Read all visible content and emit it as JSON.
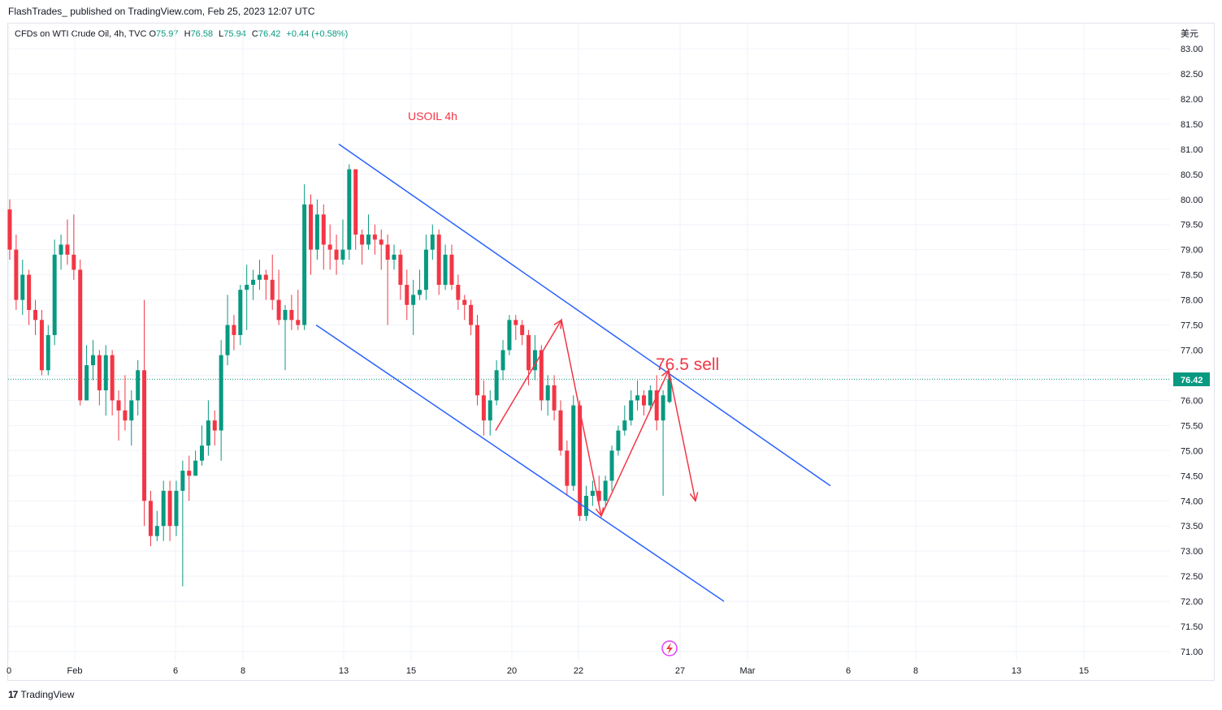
{
  "header": {
    "publisher_line": "FlashTrades_ published on TradingView.com, Feb 25, 2023 12:07 UTC"
  },
  "legend": {
    "symbol": "CFDs on WTI Crude Oil, 4h, TVC",
    "o_label": "O",
    "o_value": "75.97",
    "h_label": "H",
    "h_value": "76.58",
    "l_label": "L",
    "l_value": "75.94",
    "c_label": "C",
    "c_value": "76.42",
    "change": "+0.44 (+0.58%)"
  },
  "currency_label": "美元",
  "last_price_label": "76.42",
  "footer": {
    "logo": "17",
    "brand": "TradingView"
  },
  "colors": {
    "up": "#089981",
    "down": "#f23645",
    "channel": "#2962ff",
    "annotation": "#f23645"
  },
  "chart_data": {
    "type": "candlestick",
    "title": "USOIL 4h",
    "annotation": "76.5 sell",
    "ylim": [
      70.8,
      83.3
    ],
    "y_ticks": [
      83.0,
      82.5,
      82.0,
      81.5,
      81.0,
      80.5,
      80.0,
      79.5,
      79.0,
      78.5,
      78.0,
      77.5,
      77.0,
      76.5,
      76.0,
      75.5,
      75.0,
      74.5,
      74.0,
      73.5,
      73.0,
      72.5,
      72.0,
      71.5,
      71.0
    ],
    "x_ticks": [
      "0",
      "Feb",
      "6",
      "8",
      "13",
      "15",
      "20",
      "22",
      "27",
      "Mar",
      "6",
      "8",
      "13",
      "15"
    ],
    "last_price": 76.42,
    "channel_upper": {
      "from": 81.1,
      "to": 74.3
    },
    "channel_lower": {
      "from": 77.5,
      "to": 72.0
    },
    "path_annotation": [
      75.4,
      77.6,
      73.7,
      76.6,
      74.0
    ],
    "candles": [
      [
        79.8,
        79.0,
        80.0,
        78.8
      ],
      [
        79.0,
        78.0,
        79.3,
        77.8
      ],
      [
        78.0,
        78.5,
        78.8,
        77.7
      ],
      [
        78.5,
        77.8,
        78.6,
        77.5
      ],
      [
        77.8,
        77.6,
        78.0,
        77.3
      ],
      [
        77.6,
        76.6,
        77.8,
        76.5
      ],
      [
        76.6,
        77.3,
        77.5,
        76.5
      ],
      [
        77.3,
        78.9,
        79.2,
        77.1
      ],
      [
        78.9,
        79.1,
        79.3,
        78.6
      ],
      [
        79.1,
        78.9,
        79.6,
        78.7
      ],
      [
        78.9,
        78.6,
        79.7,
        78.4
      ],
      [
        78.6,
        76.0,
        78.8,
        75.9
      ],
      [
        76.0,
        76.7,
        77.1,
        76.0
      ],
      [
        76.7,
        76.9,
        77.2,
        76.4
      ],
      [
        76.9,
        76.2,
        77.0,
        75.9
      ],
      [
        76.2,
        76.9,
        77.1,
        75.7
      ],
      [
        76.9,
        76.0,
        77.0,
        75.7
      ],
      [
        76.0,
        75.8,
        76.2,
        75.2
      ],
      [
        75.8,
        75.6,
        76.5,
        75.4
      ],
      [
        75.6,
        76.0,
        76.2,
        75.1
      ],
      [
        76.0,
        76.6,
        76.8,
        75.7
      ],
      [
        76.6,
        74.0,
        78.0,
        73.5
      ],
      [
        74.0,
        73.3,
        74.2,
        73.1
      ],
      [
        73.3,
        73.5,
        73.8,
        73.2
      ],
      [
        73.5,
        74.2,
        74.4,
        73.2
      ],
      [
        74.2,
        73.5,
        74.4,
        73.2
      ],
      [
        73.5,
        74.2,
        74.4,
        73.3
      ],
      [
        74.2,
        74.6,
        74.8,
        72.3
      ],
      [
        74.6,
        74.5,
        74.9,
        74.0
      ],
      [
        74.5,
        74.8,
        75.0,
        74.5
      ],
      [
        74.8,
        75.1,
        75.5,
        74.7
      ],
      [
        75.1,
        75.6,
        76.0,
        74.9
      ],
      [
        75.6,
        75.4,
        75.8,
        75.1
      ],
      [
        75.4,
        76.9,
        77.2,
        74.8
      ],
      [
        76.9,
        77.5,
        78.1,
        76.7
      ],
      [
        77.5,
        77.3,
        77.7,
        77.0
      ],
      [
        77.3,
        78.2,
        78.3,
        77.1
      ],
      [
        78.2,
        78.3,
        78.7,
        77.4
      ],
      [
        78.3,
        78.4,
        78.6,
        78.0
      ],
      [
        78.4,
        78.5,
        78.8,
        78.2
      ],
      [
        78.5,
        78.4,
        78.6,
        78.0
      ],
      [
        78.4,
        78.0,
        78.9,
        77.8
      ],
      [
        78.0,
        77.6,
        78.6,
        77.5
      ],
      [
        77.6,
        77.8,
        77.9,
        76.6
      ],
      [
        77.8,
        77.6,
        78.1,
        77.4
      ],
      [
        77.6,
        77.5,
        78.2,
        77.4
      ],
      [
        77.5,
        79.9,
        80.3,
        77.4
      ],
      [
        79.9,
        79.0,
        80.1,
        78.5
      ],
      [
        79.0,
        79.7,
        80.0,
        78.8
      ],
      [
        79.7,
        79.1,
        79.9,
        78.6
      ],
      [
        79.1,
        79.0,
        79.5,
        78.6
      ],
      [
        79.0,
        78.8,
        79.3,
        78.5
      ],
      [
        78.8,
        79.0,
        79.6,
        78.7
      ],
      [
        79.0,
        80.6,
        80.7,
        78.8
      ],
      [
        80.6,
        79.3,
        80.6,
        79.0
      ],
      [
        79.3,
        79.1,
        79.4,
        78.7
      ],
      [
        79.1,
        79.3,
        79.7,
        79.0
      ],
      [
        79.3,
        79.2,
        79.5,
        78.9
      ],
      [
        79.2,
        79.1,
        79.4,
        78.6
      ],
      [
        79.1,
        78.8,
        79.3,
        77.5
      ],
      [
        78.8,
        78.9,
        79.1,
        78.6
      ],
      [
        78.9,
        78.3,
        79.0,
        78.0
      ],
      [
        78.3,
        77.9,
        78.6,
        77.6
      ],
      [
        77.9,
        78.1,
        78.4,
        77.3
      ],
      [
        78.1,
        78.2,
        78.6,
        78.0
      ],
      [
        78.2,
        79.0,
        79.3,
        78.0
      ],
      [
        79.0,
        79.3,
        79.5,
        78.8
      ],
      [
        79.3,
        78.3,
        79.4,
        78.1
      ],
      [
        78.3,
        78.9,
        79.1,
        78.2
      ],
      [
        78.9,
        78.3,
        79.1,
        78.2
      ],
      [
        78.3,
        78.0,
        78.5,
        77.8
      ],
      [
        78.0,
        77.9,
        78.1,
        77.6
      ],
      [
        77.9,
        77.5,
        78.0,
        77.3
      ],
      [
        77.5,
        76.1,
        77.7,
        75.9
      ],
      [
        76.1,
        75.6,
        76.4,
        75.3
      ],
      [
        75.6,
        76.0,
        76.2,
        75.3
      ],
      [
        76.0,
        76.6,
        76.8,
        75.9
      ],
      [
        76.6,
        77.0,
        77.2,
        76.4
      ],
      [
        77.0,
        77.6,
        77.7,
        76.9
      ],
      [
        77.6,
        77.5,
        77.7,
        77.2
      ],
      [
        77.5,
        77.3,
        77.6,
        77.1
      ],
      [
        77.3,
        76.6,
        77.4,
        76.3
      ],
      [
        76.6,
        77.0,
        77.3,
        76.4
      ],
      [
        77.0,
        76.0,
        77.1,
        75.8
      ],
      [
        76.0,
        76.3,
        76.5,
        75.7
      ],
      [
        76.3,
        75.8,
        76.5,
        75.6
      ],
      [
        75.8,
        75.0,
        76.0,
        74.9
      ],
      [
        75.0,
        74.3,
        75.2,
        74.1
      ],
      [
        74.3,
        75.9,
        76.1,
        74.2
      ],
      [
        75.9,
        73.7,
        76.0,
        73.6
      ],
      [
        73.7,
        74.1,
        74.3,
        73.6
      ],
      [
        74.1,
        74.2,
        74.4,
        73.9
      ],
      [
        74.2,
        74.0,
        74.5,
        73.9
      ],
      [
        74.0,
        74.4,
        74.5,
        73.9
      ],
      [
        74.4,
        75.0,
        75.1,
        74.2
      ],
      [
        75.0,
        75.4,
        75.5,
        74.9
      ],
      [
        75.4,
        75.6,
        75.9,
        75.3
      ],
      [
        75.6,
        76.0,
        76.2,
        75.5
      ],
      [
        76.0,
        76.1,
        76.4,
        75.8
      ],
      [
        76.1,
        75.9,
        76.2,
        75.7
      ],
      [
        75.9,
        76.2,
        76.3,
        75.8
      ],
      [
        76.2,
        75.6,
        76.5,
        75.4
      ],
      [
        75.6,
        76.1,
        76.2,
        74.1
      ],
      [
        75.97,
        76.42,
        76.58,
        75.94
      ]
    ]
  }
}
